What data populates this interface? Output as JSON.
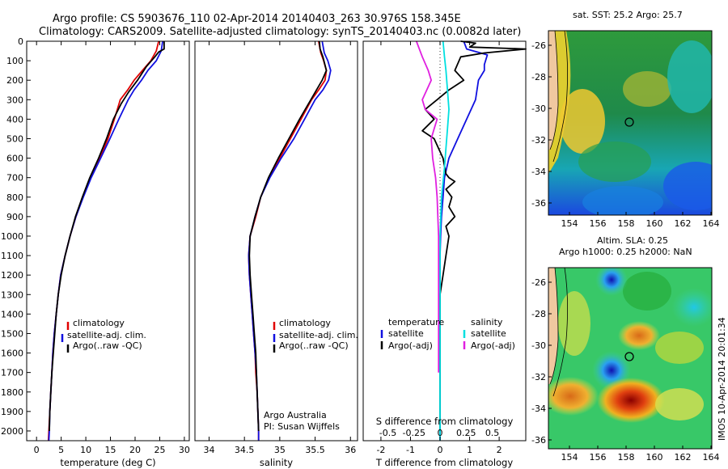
{
  "header": {
    "line1": "Argo profile: CS 5903676_110 02-Apr-2014 20140403_263 30.976S 158.345E",
    "line2": "Climatology: CARS2009. Satellite-adjusted climatology: synTS_20140403.nc (0.0082d later)"
  },
  "colors": {
    "climatology": "#e00000",
    "satellite": "#1010e0",
    "argo": "#000000",
    "salinity_sat": "#00e0e0",
    "salinity_argo": "#e020e0"
  },
  "chart_data": [
    {
      "type": "line",
      "id": "temperature",
      "xlabel": "temperature (deg C)",
      "ylabel": "",
      "xlim": [
        -2,
        31
      ],
      "ylim": [
        2050,
        0
      ],
      "xticks": [
        0,
        5,
        10,
        15,
        20,
        25,
        30
      ],
      "yticks": [
        0,
        100,
        200,
        300,
        400,
        500,
        600,
        700,
        800,
        900,
        1000,
        1100,
        1200,
        1300,
        1400,
        1500,
        1600,
        1700,
        1800,
        1900,
        2000
      ],
      "legend": [
        "climatology",
        "satellite-adj. clim.",
        "Argo(..raw -QC)"
      ],
      "series": [
        {
          "name": "climatology",
          "color": "#e00000",
          "points": [
            [
              24.8,
              0
            ],
            [
              24.3,
              50
            ],
            [
              23.2,
              100
            ],
            [
              21.5,
              150
            ],
            [
              19.8,
              200
            ],
            [
              18.5,
              250
            ],
            [
              17.0,
              300
            ],
            [
              15.8,
              400
            ],
            [
              14.5,
              500
            ],
            [
              12.8,
              600
            ],
            [
              10.9,
              700
            ],
            [
              9.4,
              800
            ],
            [
              8.0,
              900
            ],
            [
              6.8,
              1000
            ],
            [
              5.8,
              1100
            ],
            [
              4.9,
              1200
            ],
            [
              4.4,
              1300
            ],
            [
              4.0,
              1400
            ],
            [
              3.6,
              1500
            ],
            [
              3.3,
              1600
            ],
            [
              3.1,
              1700
            ],
            [
              2.9,
              1800
            ],
            [
              2.7,
              1900
            ],
            [
              2.5,
              2000
            ],
            [
              2.4,
              2050
            ]
          ]
        },
        {
          "name": "satellite-adj. clim.",
          "color": "#1010e0",
          "points": [
            [
              25.6,
              0
            ],
            [
              25.3,
              50
            ],
            [
              24.3,
              100
            ],
            [
              22.6,
              150
            ],
            [
              21.3,
              200
            ],
            [
              19.8,
              250
            ],
            [
              18.6,
              300
            ],
            [
              16.7,
              400
            ],
            [
              14.9,
              500
            ],
            [
              13.0,
              600
            ],
            [
              11.1,
              700
            ],
            [
              9.5,
              800
            ],
            [
              8.0,
              900
            ],
            [
              6.8,
              1000
            ],
            [
              5.8,
              1100
            ],
            [
              4.9,
              1200
            ],
            [
              4.4,
              1300
            ],
            [
              4.0,
              1400
            ],
            [
              3.6,
              1500
            ],
            [
              3.3,
              1600
            ],
            [
              3.1,
              1700
            ],
            [
              2.9,
              1800
            ],
            [
              2.7,
              1900
            ],
            [
              2.6,
              2000
            ],
            [
              2.5,
              2050
            ]
          ]
        },
        {
          "name": "Argo(..raw -QC)",
          "color": "#000000",
          "points": [
            [
              25.9,
              0
            ],
            [
              25.9,
              40
            ],
            [
              24.8,
              55
            ],
            [
              24.0,
              80
            ],
            [
              22.3,
              130
            ],
            [
              20.5,
              200
            ],
            [
              18.7,
              260
            ],
            [
              17.2,
              320
            ],
            [
              15.6,
              400
            ],
            [
              14.2,
              500
            ],
            [
              12.6,
              600
            ],
            [
              10.8,
              700
            ],
            [
              9.3,
              800
            ],
            [
              7.9,
              900
            ],
            [
              6.8,
              1000
            ],
            [
              5.8,
              1100
            ],
            [
              5.0,
              1200
            ],
            [
              4.4,
              1300
            ],
            [
              4.0,
              1400
            ],
            [
              3.7,
              1500
            ],
            [
              3.4,
              1600
            ],
            [
              3.1,
              1700
            ],
            [
              2.9,
              1800
            ],
            [
              2.7,
              1900
            ],
            [
              2.6,
              2000
            ]
          ]
        }
      ]
    },
    {
      "type": "line",
      "id": "salinity",
      "xlabel": "salinity",
      "ylabel": "",
      "xlim": [
        33.8,
        36.1
      ],
      "ylim": [
        2050,
        0
      ],
      "xticks": [
        34,
        34.5,
        35,
        35.5,
        36
      ],
      "legend": [
        "climatology",
        "satellite-adj. clim.",
        "Argo(..raw -QC)"
      ],
      "annotation": [
        "Argo Australia",
        "PI: Susan Wijffels"
      ],
      "series": [
        {
          "name": "climatology",
          "color": "#e00000",
          "points": [
            [
              35.55,
              0
            ],
            [
              35.58,
              60
            ],
            [
              35.62,
              100
            ],
            [
              35.66,
              150
            ],
            [
              35.64,
              200
            ],
            [
              35.55,
              250
            ],
            [
              35.45,
              300
            ],
            [
              35.3,
              400
            ],
            [
              35.15,
              500
            ],
            [
              35.0,
              600
            ],
            [
              34.85,
              700
            ],
            [
              34.73,
              800
            ],
            [
              34.66,
              900
            ],
            [
              34.58,
              1000
            ],
            [
              34.56,
              1100
            ],
            [
              34.57,
              1200
            ],
            [
              34.59,
              1300
            ],
            [
              34.61,
              1400
            ],
            [
              34.63,
              1500
            ],
            [
              34.65,
              1600
            ],
            [
              34.66,
              1700
            ],
            [
              34.68,
              1800
            ],
            [
              34.69,
              1900
            ],
            [
              34.7,
              2000
            ],
            [
              34.7,
              2050
            ]
          ]
        },
        {
          "name": "satellite-adj. clim.",
          "color": "#1010e0",
          "points": [
            [
              35.6,
              0
            ],
            [
              35.63,
              60
            ],
            [
              35.68,
              100
            ],
            [
              35.72,
              150
            ],
            [
              35.69,
              200
            ],
            [
              35.61,
              250
            ],
            [
              35.5,
              300
            ],
            [
              35.35,
              400
            ],
            [
              35.2,
              500
            ],
            [
              35.02,
              600
            ],
            [
              34.86,
              700
            ],
            [
              34.73,
              800
            ],
            [
              34.65,
              900
            ],
            [
              34.58,
              1000
            ],
            [
              34.56,
              1100
            ],
            [
              34.57,
              1200
            ],
            [
              34.59,
              1300
            ],
            [
              34.61,
              1400
            ],
            [
              34.63,
              1500
            ],
            [
              34.65,
              1600
            ],
            [
              34.67,
              1700
            ],
            [
              34.68,
              1800
            ],
            [
              34.69,
              1900
            ],
            [
              34.7,
              2000
            ],
            [
              34.7,
              2050
            ]
          ]
        },
        {
          "name": "Argo(..raw -QC)",
          "color": "#000000",
          "points": [
            [
              35.56,
              0
            ],
            [
              35.57,
              40
            ],
            [
              35.61,
              80
            ],
            [
              35.66,
              150
            ],
            [
              35.6,
              200
            ],
            [
              35.52,
              250
            ],
            [
              35.44,
              300
            ],
            [
              35.28,
              400
            ],
            [
              35.13,
              500
            ],
            [
              34.98,
              600
            ],
            [
              34.84,
              700
            ],
            [
              34.73,
              800
            ],
            [
              34.65,
              900
            ],
            [
              34.58,
              1000
            ],
            [
              34.57,
              1100
            ],
            [
              34.58,
              1200
            ],
            [
              34.6,
              1300
            ],
            [
              34.62,
              1400
            ],
            [
              34.64,
              1500
            ],
            [
              34.66,
              1600
            ],
            [
              34.67,
              1700
            ],
            [
              34.68,
              1800
            ],
            [
              34.69,
              1900
            ],
            [
              34.7,
              2000
            ]
          ]
        }
      ]
    },
    {
      "type": "line",
      "id": "difference",
      "xlabel": "T difference from climatology",
      "xlabel2": "S difference from climatology",
      "xlim": [
        -2.6,
        2.9
      ],
      "ylim": [
        2050,
        0
      ],
      "xticks": [
        -2,
        -1,
        0,
        1,
        2
      ],
      "xticks_top": [
        "-0.5",
        "-0.25",
        "0",
        "0.25",
        "0.5"
      ],
      "legend_left": [
        "temperature",
        "satellite",
        "Argo(-adj)"
      ],
      "legend_right": [
        "salinity",
        "satellite",
        "Argo(-adj)"
      ],
      "series": [
        {
          "name": "T satellite",
          "color": "#1010e0",
          "points": [
            [
              0.8,
              0
            ],
            [
              0.9,
              40
            ],
            [
              1.6,
              70
            ],
            [
              1.5,
              120
            ],
            [
              1.5,
              150
            ],
            [
              1.3,
              200
            ],
            [
              1.2,
              300
            ],
            [
              0.9,
              400
            ],
            [
              0.6,
              500
            ],
            [
              0.3,
              600
            ],
            [
              0.15,
              700
            ],
            [
              0.1,
              800
            ],
            [
              0.05,
              900
            ],
            [
              0.02,
              1000
            ],
            [
              0.0,
              1100
            ],
            [
              0.0,
              1300
            ],
            [
              0.0,
              1500
            ],
            [
              0.0,
              1700
            ],
            [
              0.0,
              1900
            ],
            [
              0.0,
              2050
            ]
          ]
        },
        {
          "name": "T Argo(-adj)",
          "color": "#000000",
          "points": [
            [
              0.7,
              0
            ],
            [
              1.2,
              10
            ],
            [
              1.0,
              30
            ],
            [
              2.9,
              40
            ],
            [
              1.5,
              60
            ],
            [
              0.7,
              80
            ],
            [
              0.5,
              150
            ],
            [
              0.8,
              200
            ],
            [
              0.3,
              250
            ],
            [
              -0.1,
              300
            ],
            [
              -0.5,
              350
            ],
            [
              -0.2,
              400
            ],
            [
              -0.6,
              460
            ],
            [
              -0.2,
              500
            ],
            [
              0.1,
              600
            ],
            [
              0.2,
              680
            ],
            [
              0.3,
              700
            ],
            [
              0.5,
              720
            ],
            [
              0.2,
              760
            ],
            [
              0.4,
              800
            ],
            [
              0.3,
              850
            ],
            [
              0.5,
              900
            ],
            [
              0.2,
              950
            ],
            [
              0.3,
              1000
            ],
            [
              0.2,
              1100
            ],
            [
              0.1,
              1200
            ],
            [
              0.0,
              1300
            ],
            [
              0.0,
              1500
            ],
            [
              0.0,
              1700
            ],
            [
              0.0,
              1900
            ],
            [
              0.0,
              2000
            ]
          ]
        },
        {
          "name": "S satellite",
          "color": "#00e0e0",
          "points": [
            [
              0.1,
              0
            ],
            [
              0.15,
              80
            ],
            [
              0.2,
              150
            ],
            [
              0.25,
              250
            ],
            [
              0.3,
              350
            ],
            [
              0.25,
              450
            ],
            [
              0.2,
              550
            ],
            [
              0.15,
              650
            ],
            [
              0.05,
              800
            ],
            [
              0.0,
              1000
            ],
            [
              0.0,
              1200
            ],
            [
              0.0,
              1500
            ],
            [
              0.0,
              1800
            ],
            [
              0.0,
              2050
            ]
          ]
        },
        {
          "name": "S Argo(-adj)",
          "color": "#e020e0",
          "points": [
            [
              -0.8,
              0
            ],
            [
              -0.7,
              40
            ],
            [
              -0.6,
              80
            ],
            [
              -0.4,
              150
            ],
            [
              -0.3,
              200
            ],
            [
              -0.6,
              300
            ],
            [
              -0.5,
              350
            ],
            [
              -0.1,
              400
            ],
            [
              -0.2,
              450
            ],
            [
              -0.3,
              500
            ],
            [
              -0.25,
              600
            ],
            [
              -0.15,
              700
            ],
            [
              -0.1,
              800
            ],
            [
              -0.05,
              1000
            ],
            [
              -0.05,
              1200
            ],
            [
              -0.05,
              1400
            ],
            [
              -0.05,
              1600
            ],
            [
              -0.05,
              1700
            ]
          ]
        }
      ]
    }
  ],
  "map_sst": {
    "title": "sat. SST: 25.2  Argo: 25.7",
    "xticks": [
      "154",
      "156",
      "158",
      "160",
      "162",
      "164"
    ],
    "yticks": [
      "-26",
      "-28",
      "-30",
      "-32",
      "-34",
      "-36"
    ]
  },
  "map_sla": {
    "title1": "Altim. SLA: 0.25",
    "title2": "Argo h1000: 0.25 h2000: NaN",
    "xticks": [
      "154",
      "156",
      "158",
      "160",
      "162",
      "164"
    ],
    "yticks": [
      "-26",
      "-28",
      "-30",
      "-32",
      "-34",
      "-36"
    ]
  },
  "side_label": "IMOS 10-Apr-2014 20:01:34"
}
